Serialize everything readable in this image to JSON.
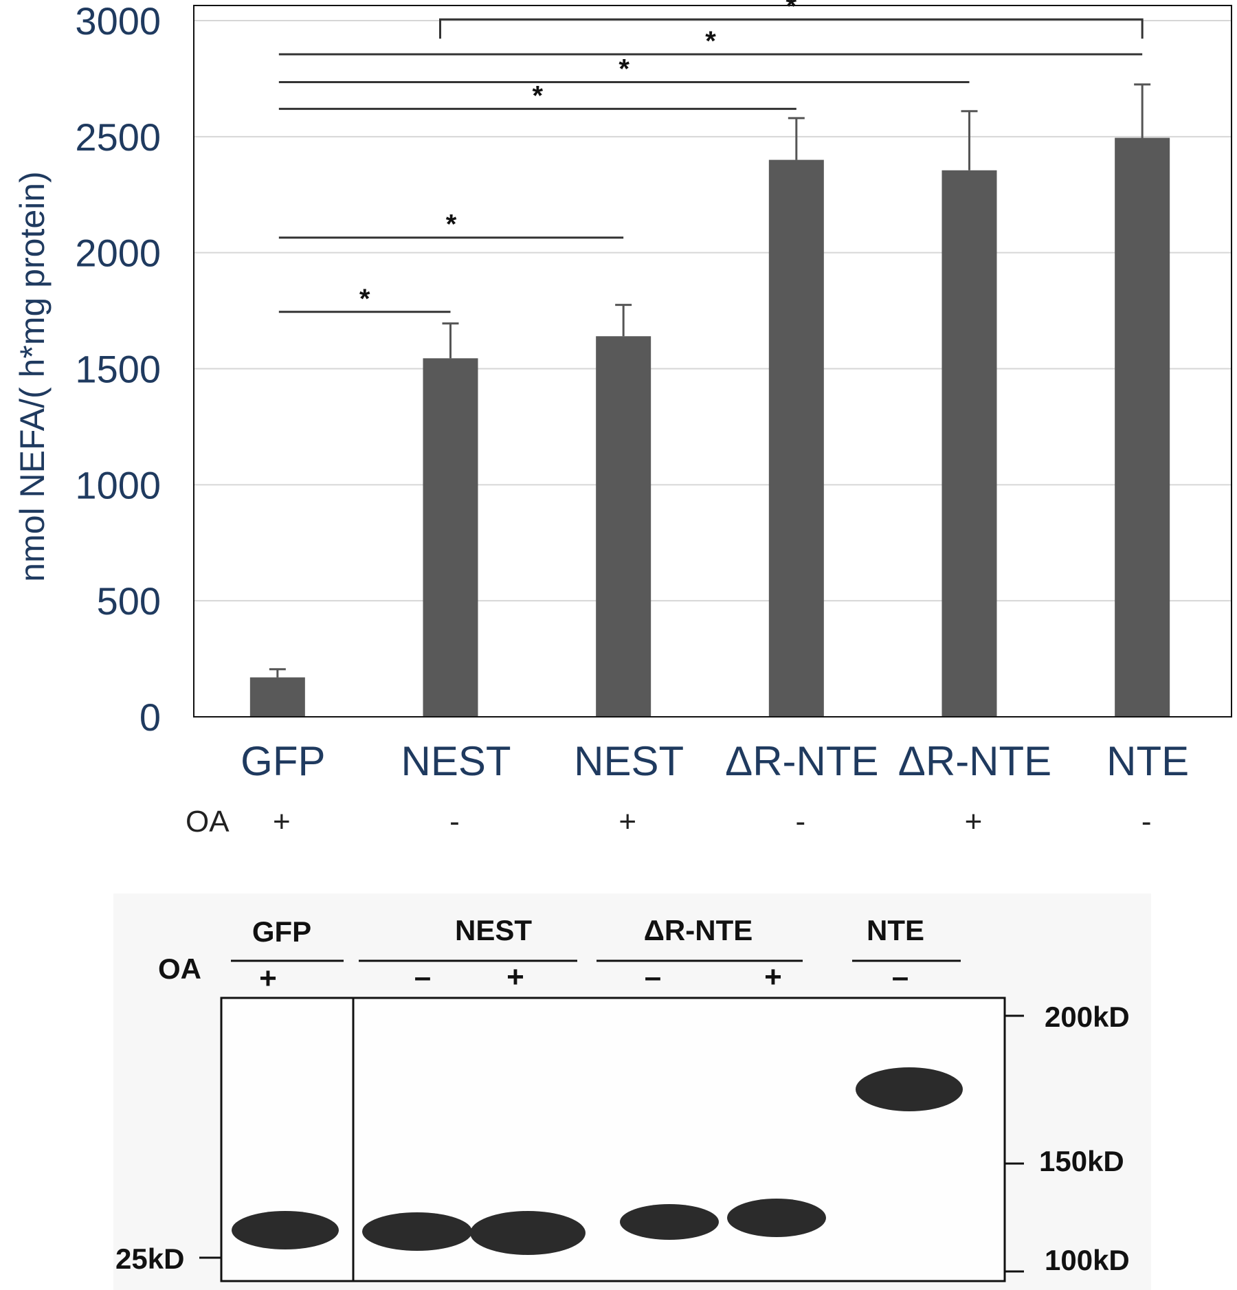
{
  "chart_data": {
    "type": "bar",
    "ylabel": "nmol NEFA/( h*mg protein)",
    "ylim": [
      0,
      3000
    ],
    "yticks": [
      "0",
      "500",
      "1000",
      "1500",
      "2000",
      "2500",
      "3000"
    ],
    "grid": true,
    "categories": [
      "GFP",
      "NEST",
      "NEST",
      "ΔR-NTE",
      "ΔR-NTE",
      "NTE"
    ],
    "oa_label": "OA",
    "oa": [
      "+",
      "-",
      "+",
      "-",
      "+",
      "-"
    ],
    "values": [
      170,
      1545,
      1640,
      2400,
      2355,
      2495
    ],
    "errors": [
      35,
      150,
      135,
      180,
      255,
      230
    ],
    "bar_color": "#595959",
    "significance": [
      {
        "from": 0,
        "to": 1,
        "y": 1745,
        "label": "*"
      },
      {
        "from": 0,
        "to": 2,
        "y": 2065,
        "label": "*"
      },
      {
        "from": 0,
        "to": 3,
        "y": 2620,
        "label": "*"
      },
      {
        "from": 0,
        "to": 4,
        "y": 2735,
        "label": "*"
      },
      {
        "from": 0,
        "to": 5,
        "y": 2855,
        "label": "*"
      },
      {
        "from": 1,
        "to": 5,
        "y": 3005,
        "label": "*",
        "bracket": true
      }
    ]
  },
  "blot": {
    "groups": [
      "GFP",
      "NEST",
      "ΔR-NTE",
      "NTE"
    ],
    "oa_label": "OA",
    "lane_signs": [
      "+",
      "–",
      "+",
      "–",
      "+",
      "–"
    ],
    "markers": [
      "200kD",
      "150kD",
      "100kD"
    ],
    "left_marker": "25kD"
  }
}
